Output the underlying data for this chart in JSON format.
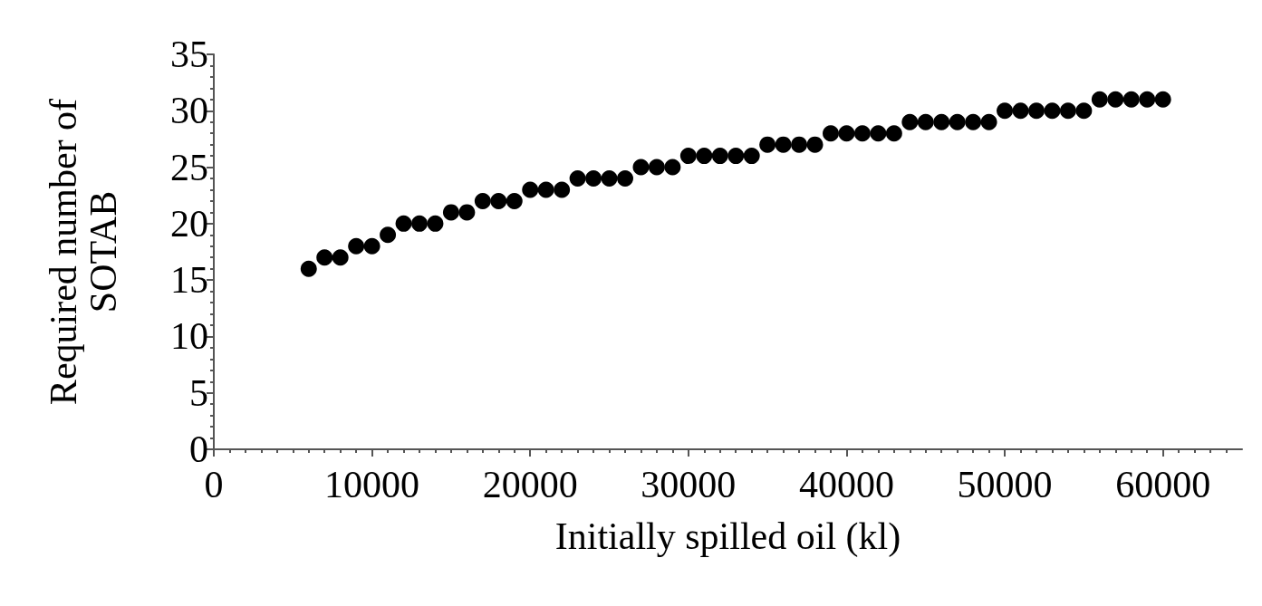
{
  "chart_data": {
    "type": "scatter",
    "xlabel": "Initially spilled oil (kl)",
    "ylabel": "Required number of\nSOTAB",
    "x": [
      6000,
      7000,
      8000,
      9000,
      10000,
      11000,
      12000,
      13000,
      14000,
      15000,
      16000,
      17000,
      18000,
      19000,
      20000,
      21000,
      22000,
      23000,
      24000,
      25000,
      26000,
      27000,
      28000,
      29000,
      30000,
      31000,
      32000,
      33000,
      34000,
      35000,
      36000,
      37000,
      38000,
      39000,
      40000,
      41000,
      42000,
      43000,
      44000,
      45000,
      46000,
      47000,
      48000,
      49000,
      50000,
      51000,
      52000,
      53000,
      54000,
      55000,
      56000,
      57000,
      58000,
      59000,
      60000
    ],
    "values": [
      16,
      17,
      17,
      18,
      18,
      19,
      20,
      20,
      20,
      21,
      21,
      22,
      22,
      22,
      23,
      23,
      23,
      24,
      24,
      24,
      24,
      25,
      25,
      25,
      26,
      26,
      26,
      26,
      26,
      27,
      27,
      27,
      27,
      28,
      28,
      28,
      28,
      28,
      29,
      29,
      29,
      29,
      29,
      29,
      30,
      30,
      30,
      30,
      30,
      30,
      31,
      31,
      31,
      31,
      31
    ],
    "color": "#000000",
    "marker": "circle",
    "grid": false,
    "xlim": [
      0,
      65000
    ],
    "xticks": [
      0,
      10000,
      20000,
      30000,
      40000,
      50000,
      60000
    ],
    "ylim": [
      0,
      35
    ],
    "yticks": [
      0,
      5,
      10,
      15,
      20,
      25,
      30,
      35
    ]
  }
}
